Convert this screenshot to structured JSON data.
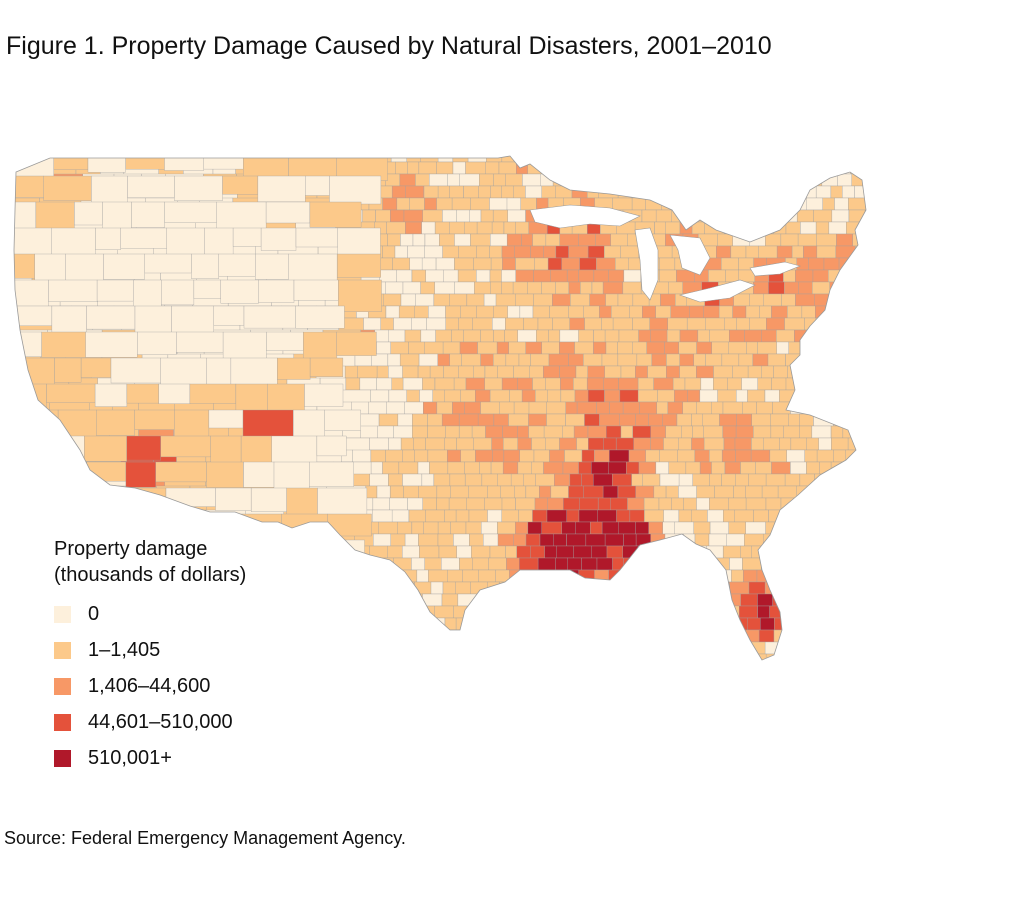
{
  "title": "Figure 1. Property Damage Caused by Natural Disasters, 2001–2010",
  "legend": {
    "title_line1": "Property damage",
    "title_line2": "(thousands of dollars)",
    "items": [
      {
        "label": "0",
        "color": "#fdf0dc"
      },
      {
        "label": "1–1,405",
        "color": "#fcc98a"
      },
      {
        "label": "1,406–44,600",
        "color": "#f79866"
      },
      {
        "label": "44,601–510,000",
        "color": "#e4523b"
      },
      {
        "label": "510,001+",
        "color": "#b0182a"
      }
    ]
  },
  "source": "Source: Federal Emergency Management Agency.",
  "map": {
    "region": "contiguous United States",
    "unit": "county",
    "border_color": "#a0a0a0",
    "lake_color": "#ffffff"
  }
}
